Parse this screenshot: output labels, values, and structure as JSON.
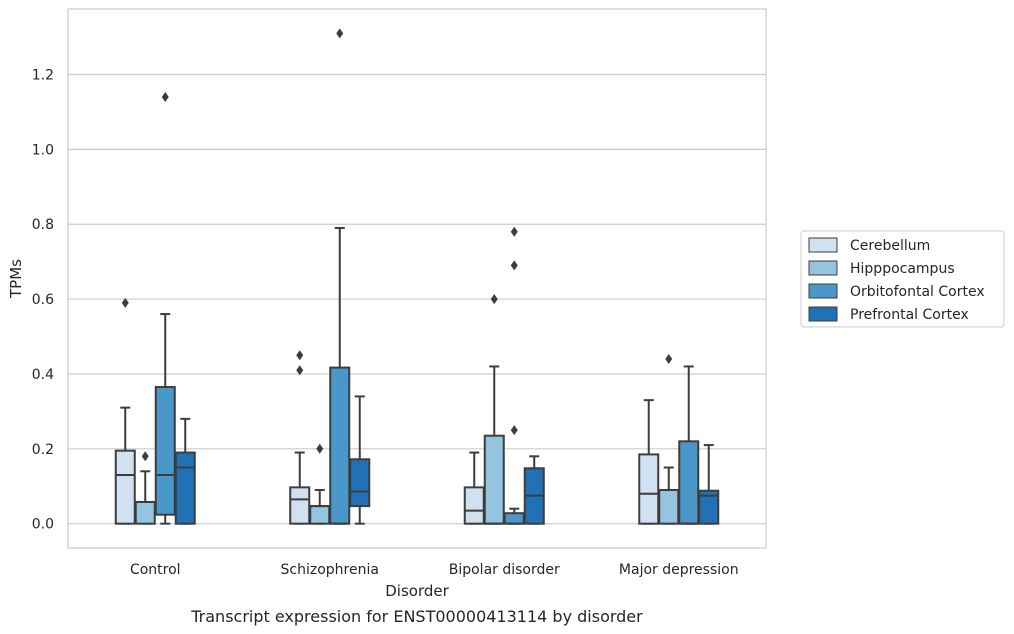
{
  "chart_data": {
    "type": "box",
    "caption": "Transcript expression for ENST00000413114 by disorder",
    "xlabel": "Disorder",
    "ylabel": "TPMs",
    "ylim": [
      -0.065,
      1.375
    ],
    "yticks": [
      "0.0",
      "0.2",
      "0.4",
      "0.6",
      "0.8",
      "1.0",
      "1.2"
    ],
    "grid": true,
    "legend_position": "right",
    "categories": [
      "Control",
      "Schizophrenia",
      "Bipolar disorder",
      "Major depression"
    ],
    "series": [
      {
        "name": "Cerebellum",
        "color": "#d0e1f2",
        "boxes": [
          {
            "lower_whisker": 0.0,
            "q1": 0.0,
            "median": 0.13,
            "q3": 0.195,
            "upper_whisker": 0.31,
            "outliers": [
              0.59
            ]
          },
          {
            "lower_whisker": 0.0,
            "q1": 0.0,
            "median": 0.065,
            "q3": 0.097,
            "upper_whisker": 0.19,
            "outliers": [
              0.41,
              0.45
            ]
          },
          {
            "lower_whisker": 0.0,
            "q1": 0.0,
            "median": 0.035,
            "q3": 0.097,
            "upper_whisker": 0.19,
            "outliers": []
          },
          {
            "lower_whisker": 0.0,
            "q1": 0.0,
            "median": 0.08,
            "q3": 0.185,
            "upper_whisker": 0.33,
            "outliers": []
          }
        ]
      },
      {
        "name": "Hipppocampus",
        "color": "#94c4df",
        "boxes": [
          {
            "lower_whisker": 0.0,
            "q1": 0.0,
            "median": 0.058,
            "q3": 0.058,
            "upper_whisker": 0.14,
            "outliers": [
              0.18
            ]
          },
          {
            "lower_whisker": 0.0,
            "q1": 0.0,
            "median": 0.047,
            "q3": 0.047,
            "upper_whisker": 0.09,
            "outliers": [
              0.2
            ]
          },
          {
            "lower_whisker": 0.0,
            "q1": 0.0,
            "median": 0.0,
            "q3": 0.235,
            "upper_whisker": 0.42,
            "outliers": [
              0.6
            ]
          },
          {
            "lower_whisker": 0.0,
            "q1": 0.0,
            "median": 0.09,
            "q3": 0.09,
            "upper_whisker": 0.15,
            "outliers": [
              0.44
            ]
          }
        ]
      },
      {
        "name": "Orbitofontal Cortex",
        "color": "#4a98c9",
        "boxes": [
          {
            "lower_whisker": 0.0,
            "q1": 0.024,
            "median": 0.13,
            "q3": 0.365,
            "upper_whisker": 0.56,
            "outliers": [
              1.14
            ]
          },
          {
            "lower_whisker": 0.0,
            "q1": 0.0,
            "median": 0.0,
            "q3": 0.417,
            "upper_whisker": 0.79,
            "outliers": [
              1.31
            ]
          },
          {
            "lower_whisker": 0.0,
            "q1": 0.0,
            "median": 0.0,
            "q3": 0.028,
            "upper_whisker": 0.04,
            "outliers": [
              0.25,
              0.69,
              0.78
            ]
          },
          {
            "lower_whisker": 0.0,
            "q1": 0.0,
            "median": 0.0,
            "q3": 0.22,
            "upper_whisker": 0.42,
            "outliers": []
          }
        ]
      },
      {
        "name": "Prefrontal Cortex",
        "color": "#2171b5",
        "boxes": [
          {
            "lower_whisker": 0.0,
            "q1": 0.0,
            "median": 0.15,
            "q3": 0.19,
            "upper_whisker": 0.28,
            "outliers": []
          },
          {
            "lower_whisker": 0.0,
            "q1": 0.047,
            "median": 0.086,
            "q3": 0.172,
            "upper_whisker": 0.34,
            "outliers": []
          },
          {
            "lower_whisker": 0.0,
            "q1": 0.0,
            "median": 0.075,
            "q3": 0.148,
            "upper_whisker": 0.18,
            "outliers": []
          },
          {
            "lower_whisker": 0.0,
            "q1": 0.0,
            "median": 0.075,
            "q3": 0.088,
            "upper_whisker": 0.21,
            "outliers": []
          }
        ]
      }
    ]
  }
}
